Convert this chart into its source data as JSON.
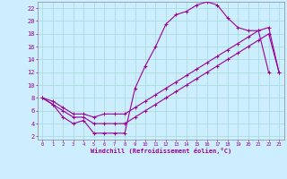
{
  "xlabel": "Windchill (Refroidissement éolien,°C)",
  "background_color": "#cceeff",
  "grid_color": "#aadddd",
  "line_color": "#990099",
  "xlim": [
    -0.5,
    23.5
  ],
  "ylim": [
    1.5,
    23
  ],
  "xticks": [
    0,
    1,
    2,
    3,
    4,
    5,
    6,
    7,
    8,
    9,
    10,
    11,
    12,
    13,
    14,
    15,
    16,
    17,
    18,
    19,
    20,
    21,
    22,
    23
  ],
  "yticks": [
    2,
    4,
    6,
    8,
    10,
    12,
    14,
    16,
    18,
    20,
    22
  ],
  "curve1_x": [
    0,
    1,
    2,
    3,
    4,
    5,
    6,
    7,
    8,
    9,
    10,
    11,
    12,
    13,
    14,
    15,
    16,
    17,
    18,
    19,
    20,
    21,
    22
  ],
  "curve1_y": [
    8,
    7,
    5,
    4,
    4.5,
    2.5,
    2.5,
    2.5,
    2.5,
    9.5,
    13,
    16,
    19.5,
    21,
    21.5,
    22.5,
    23,
    22.5,
    20.5,
    19,
    18.5,
    18.5,
    12
  ],
  "curve2_x": [
    0,
    1,
    2,
    3,
    4,
    5,
    6,
    7,
    8,
    9,
    10,
    11,
    12,
    13,
    14,
    15,
    16,
    17,
    18,
    19,
    20,
    21,
    22,
    23
  ],
  "curve2_y": [
    8,
    7.5,
    6.5,
    5.5,
    5.5,
    5,
    5.5,
    5.5,
    5.5,
    6.5,
    7.5,
    8.5,
    9.5,
    10.5,
    11.5,
    12.5,
    13.5,
    14.5,
    15.5,
    16.5,
    17.5,
    18.5,
    19,
    12
  ],
  "curve3_x": [
    0,
    1,
    2,
    3,
    4,
    5,
    6,
    7,
    8,
    9,
    10,
    11,
    12,
    13,
    14,
    15,
    16,
    17,
    18,
    19,
    20,
    21,
    22,
    23
  ],
  "curve3_y": [
    8,
    7,
    6,
    5,
    5,
    4,
    4,
    4,
    4,
    5,
    6,
    7,
    8,
    9,
    10,
    11,
    12,
    13,
    14,
    15,
    16,
    17,
    18,
    12
  ]
}
